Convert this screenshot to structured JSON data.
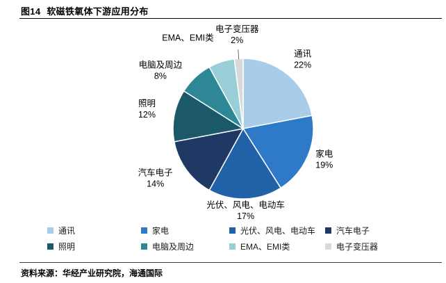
{
  "header": {
    "figure_label": "图14",
    "title": "软磁铁氧体下游应用分布"
  },
  "footer": {
    "source": "资料来源：华经产业研究院，海通国际"
  },
  "chart_data": {
    "type": "pie",
    "title": "软磁铁氧体下游应用分布",
    "values_unit": "percent",
    "start_angle_deg": 0,
    "direction": "clockwise",
    "legend_position": "bottom",
    "slices": [
      {
        "label": "通讯",
        "value": 22,
        "pct_label": "22%",
        "color": "#A9CCE9"
      },
      {
        "label": "家电",
        "value": 19,
        "pct_label": "19%",
        "color": "#2E79C8"
      },
      {
        "label": "光伏、风电、电动车",
        "value": 17,
        "pct_label": "17%",
        "color": "#2161A8"
      },
      {
        "label": "汽车电子",
        "value": 14,
        "pct_label": "14%",
        "color": "#1F3864"
      },
      {
        "label": "照明",
        "value": 12,
        "pct_label": "12%",
        "color": "#1B5968"
      },
      {
        "label": "电脑及周边",
        "value": 8,
        "pct_label": "8%",
        "color": "#2D8794"
      },
      {
        "label": "EMA、EMI类",
        "value": 6,
        "pct_label": "",
        "color": "#98CFD6"
      },
      {
        "label": "电子变压器",
        "value": 2,
        "pct_label": "2%",
        "color": "#D9D9D9"
      }
    ]
  }
}
